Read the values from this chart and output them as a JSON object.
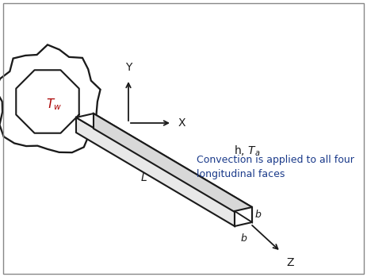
{
  "bg_color": "#ffffff",
  "line_color": "#1a1a1a",
  "label_color_tw": "#aa0000",
  "label_color_conv": "#1a3a8a",
  "Tw_label": "$T_w$",
  "hTa_label": "h, $T_a$",
  "L_label": "L",
  "b_label_side": "b",
  "b_label_bot": "b",
  "X_label": "X",
  "Y_label": "Y",
  "Z_label": "Z",
  "conv_text": "Convection is applied to all four\nlongitudinal faces"
}
